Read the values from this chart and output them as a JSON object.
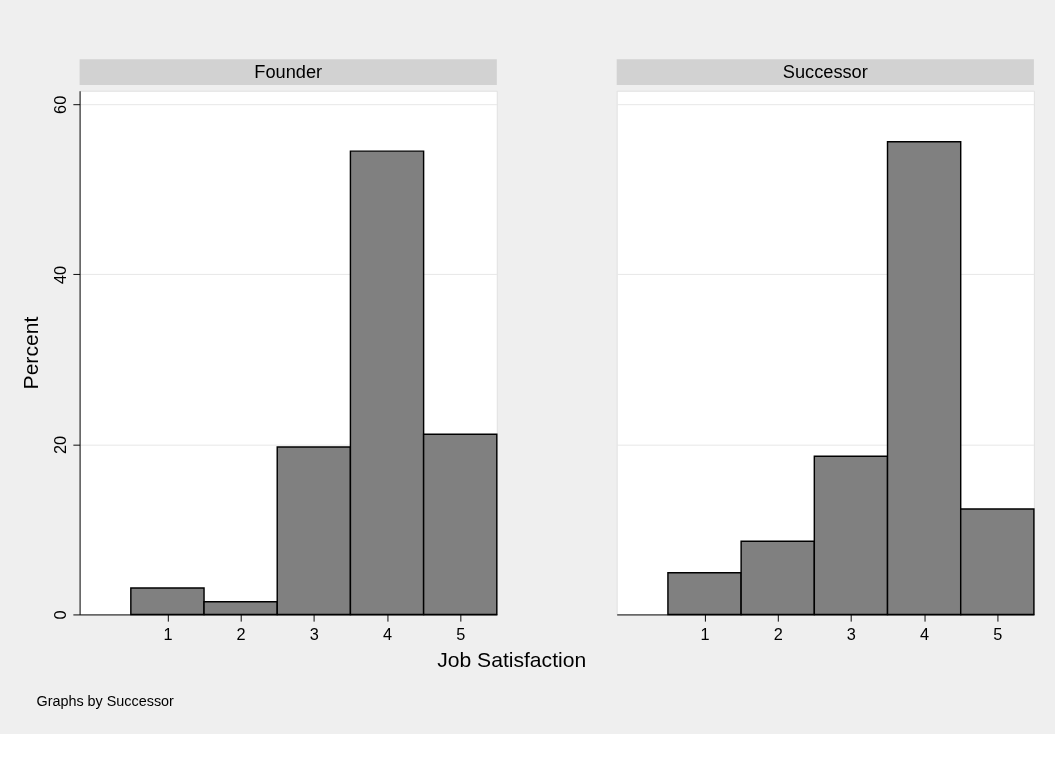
{
  "chart_data": [
    {
      "type": "histogram",
      "title": "Founder",
      "ylabel": "Percent",
      "xlabel": "Job Satisfaction",
      "bins": [
        0.5,
        1.5,
        2.5,
        3.5,
        4.5,
        5.5
      ],
      "values": [
        3.1,
        1.5,
        19.7,
        54.5,
        21.2
      ],
      "color": "#808080",
      "xlim": [
        -0.2,
        5.5
      ],
      "xticks": [
        1,
        2,
        3,
        4,
        5
      ],
      "ylim": [
        0,
        61.6
      ],
      "yticks": [
        0,
        20,
        40,
        60
      ],
      "grid": "y",
      "annotations": [
        "Graphs by Successor"
      ]
    },
    {
      "type": "histogram",
      "title": "Successor",
      "bins": [
        0.5,
        1.5,
        2.5,
        3.5,
        4.5,
        5.5
      ],
      "values": [
        4.9,
        8.6,
        18.6,
        55.6,
        12.4
      ],
      "color": "#808080",
      "xlim": [
        -0.2,
        5.5
      ],
      "xticks": [
        1,
        2,
        3,
        4,
        5
      ],
      "ylim": [
        0,
        61.6
      ],
      "yticks": [
        0,
        20,
        40,
        60
      ],
      "grid": "y",
      "tick_labels": "x"
    }
  ]
}
